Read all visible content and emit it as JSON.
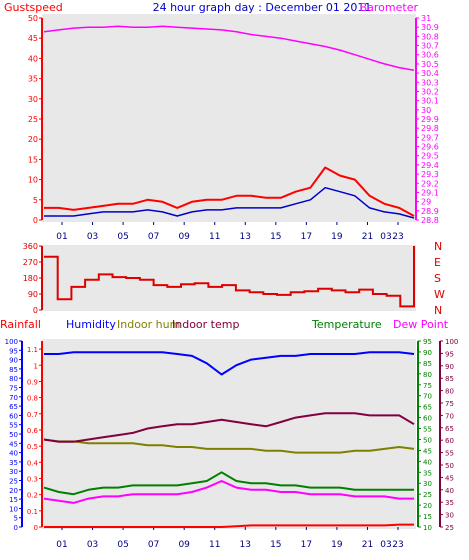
{
  "header": {
    "left": "Gustspeed",
    "center": "24 hour graph day : December 01 2011",
    "right": "Barometer"
  },
  "colors": {
    "background": "#ffffff",
    "plot_bg": "#e8e8e8",
    "gust": "#ff0000",
    "wind": "#0000cc",
    "baro": "#ff00ff",
    "dir": "#dd0000",
    "humidity": "#0000ff",
    "indoor_hum": "#808000",
    "indoor_temp": "#800040",
    "temperature": "#008000",
    "dew_point": "#ff00ff",
    "rain": "#ff0000",
    "annotation": "#ffff00"
  },
  "chart_data": [
    {
      "type": "line",
      "x_ticks": [
        "01",
        "03",
        "05",
        "07",
        "09",
        "11",
        "13",
        "15",
        "17",
        "19",
        "21",
        "23"
      ],
      "x_tick_23": "03",
      "left_axis": {
        "ticks": [
          "0",
          "5",
          "10",
          "15",
          "20",
          "25",
          "30",
          "35",
          "40",
          "45",
          "50"
        ],
        "ylim": [
          0,
          50
        ]
      },
      "right_axis": {
        "ticks": [
          "28.8",
          "28.9",
          "29",
          "29.1",
          "29.2",
          "29.3",
          "29.4",
          "29.5",
          "29.6",
          "29.7",
          "29.8",
          "29.9",
          "30",
          "30.1",
          "30.2",
          "30.3",
          "30.4",
          "30.5",
          "30.6",
          "30.7",
          "30.8",
          "30.9",
          "31"
        ],
        "ylim": [
          28.8,
          31.0
        ]
      },
      "series": [
        {
          "name": "Gustspeed",
          "axis": "left",
          "values": [
            3,
            3,
            2.5,
            3,
            3.5,
            4,
            4,
            5,
            4.5,
            3,
            4.5,
            5,
            5,
            6,
            6,
            5.5,
            5.5,
            7,
            8,
            13,
            11,
            10,
            6,
            4,
            3,
            1
          ]
        },
        {
          "name": "Wind",
          "axis": "left",
          "values": [
            1,
            1,
            1,
            1.5,
            2,
            2,
            2,
            2.5,
            2,
            1,
            2,
            2.5,
            2.5,
            3,
            3,
            3,
            3,
            4,
            5,
            8,
            7,
            6,
            3,
            2,
            1.5,
            0.5
          ]
        },
        {
          "name": "Barometer",
          "axis": "right",
          "values": [
            30.85,
            30.87,
            30.89,
            30.9,
            30.9,
            30.91,
            30.9,
            30.9,
            30.91,
            30.9,
            30.89,
            30.88,
            30.87,
            30.85,
            30.82,
            30.8,
            30.78,
            30.75,
            30.72,
            30.69,
            30.65,
            30.6,
            30.55,
            30.5,
            30.46,
            30.43
          ]
        }
      ]
    },
    {
      "type": "line",
      "right_labels": [
        "N",
        "W",
        "S",
        "E",
        "N"
      ],
      "left_axis": {
        "ticks": [
          "0",
          "90",
          "180",
          "270",
          "360"
        ],
        "ylim": [
          0,
          360
        ]
      },
      "series": [
        {
          "name": "Wind direction",
          "values": [
            300,
            60,
            130,
            170,
            200,
            185,
            180,
            170,
            140,
            130,
            145,
            150,
            130,
            140,
            110,
            100,
            90,
            85,
            100,
            105,
            120,
            110,
            100,
            115,
            90,
            80,
            20,
            360
          ]
        }
      ]
    },
    {
      "type": "line",
      "labels": {
        "rainfall": "Rainfall",
        "humidity": "Humidity",
        "indoor_hum": "Indoor hum",
        "indoor_temp": "Indoor temp",
        "temperature": "Temperature",
        "dew_point": "Dew Point"
      },
      "left_axis_1": {
        "ticks": [
          "0",
          "5",
          "10",
          "15",
          "20",
          "25",
          "30",
          "35",
          "40",
          "45",
          "50",
          "55",
          "60",
          "65",
          "70",
          "75",
          "80",
          "85",
          "90",
          "95",
          "100"
        ],
        "ylim": [
          0,
          100
        ]
      },
      "left_axis_2": {
        "ticks": [
          "0",
          "0.1",
          "0.2",
          "0.3",
          "0.4",
          "0.5",
          "0.6",
          "0.7",
          "0.8",
          "0.9",
          "1",
          "1.1"
        ],
        "ylim": [
          0,
          1.15
        ]
      },
      "right_axis_1": {
        "ticks": [
          "10",
          "15",
          "20",
          "25",
          "30",
          "35",
          "40",
          "45",
          "50",
          "55",
          "60",
          "65",
          "70",
          "75",
          "80",
          "85",
          "90",
          "95"
        ],
        "ylim": [
          10,
          95
        ]
      },
      "right_axis_2": {
        "ticks": [
          "25",
          "30",
          "35",
          "40",
          "45",
          "50",
          "55",
          "60",
          "65",
          "70",
          "75",
          "80",
          "85",
          "90",
          "95",
          "100"
        ],
        "ylim": [
          25,
          100
        ]
      },
      "series": [
        {
          "name": "Humidity",
          "axis": "left_axis_1",
          "values": [
            93,
            93,
            94,
            94,
            94,
            94,
            94,
            94,
            94,
            93,
            92,
            88,
            82,
            87,
            90,
            91,
            92,
            92,
            93,
            93,
            93,
            93,
            94,
            94,
            94,
            93
          ]
        },
        {
          "name": "Indoor hum",
          "axis": "left_axis_1",
          "values": [
            47,
            46,
            46,
            45,
            45,
            45,
            45,
            44,
            44,
            43,
            43,
            42,
            42,
            42,
            42,
            41,
            41,
            40,
            40,
            40,
            40,
            41,
            41,
            42,
            43,
            42
          ]
        },
        {
          "name": "Indoor temp",
          "axis": "right_axis_1",
          "values": [
            50,
            49,
            49,
            50,
            51,
            52,
            53,
            55,
            56,
            57,
            57,
            58,
            59,
            58,
            57,
            56,
            58,
            60,
            61,
            62,
            62,
            62,
            61,
            61,
            61,
            57
          ]
        },
        {
          "name": "Temperature",
          "axis": "right_axis_1",
          "values": [
            28,
            26,
            25,
            27,
            28,
            28,
            29,
            29,
            29,
            29,
            30,
            31,
            35,
            31,
            30,
            30,
            29,
            29,
            28,
            28,
            28,
            27,
            27,
            27,
            27,
            27
          ]
        },
        {
          "name": "Dew Point",
          "axis": "right_axis_1",
          "values": [
            23,
            22,
            21,
            23,
            24,
            24,
            25,
            25,
            25,
            25,
            26,
            28,
            31,
            28,
            27,
            27,
            26,
            26,
            25,
            25,
            25,
            24,
            24,
            24,
            23,
            23
          ]
        },
        {
          "name": "Rainfall",
          "axis": "left_axis_2",
          "values": [
            0,
            0,
            0,
            0,
            0,
            0,
            0,
            0,
            0,
            0,
            0,
            0,
            0,
            0.005,
            0.01,
            0.01,
            0.01,
            0.01,
            0.01,
            0.01,
            0.01,
            0.01,
            0.01,
            0.01,
            0.015,
            0.015
          ]
        }
      ]
    }
  ]
}
